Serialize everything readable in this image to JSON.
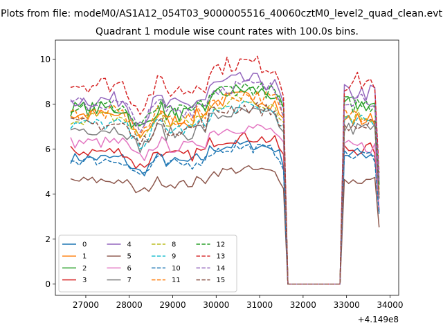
{
  "figure": {
    "suptitle": "Plots from file: modeM0/AS1A12_054T03_9000005516_40060cztM0_level2_quad_clean.evt",
    "title": "Quadrant 1 module wise count rates with 100.0s bins.",
    "x_offset_label": "+4.149e8"
  },
  "chart_data": {
    "type": "line",
    "title": "Quadrant 1 module wise count rates with 100.0s bins.",
    "xlabel": "",
    "ylabel": "",
    "x_offset": 414900000,
    "xlim": [
      26300,
      34200
    ],
    "ylim": [
      -0.5,
      10.85
    ],
    "xticks": [
      27000,
      28000,
      29000,
      30000,
      31000,
      32000,
      33000,
      34000
    ],
    "yticks": [
      0,
      2,
      4,
      6,
      8,
      10
    ],
    "legend_position": "lower-left",
    "legend_columns": 4,
    "series": [
      {
        "name": "0",
        "color": "#1f77b4",
        "dash": "solid",
        "base": 5.6,
        "gap": 5.8
      },
      {
        "name": "1",
        "color": "#ff7f0e",
        "dash": "solid",
        "base": 7.5,
        "gap": 7.3
      },
      {
        "name": "2",
        "color": "#2ca02c",
        "dash": "solid",
        "base": 7.8,
        "gap": 8.0
      },
      {
        "name": "3",
        "color": "#d62728",
        "dash": "solid",
        "base": 5.9,
        "gap": 6.0
      },
      {
        "name": "4",
        "color": "#9467bd",
        "dash": "solid",
        "base": 8.2,
        "gap": 8.5
      },
      {
        "name": "5",
        "color": "#8c564b",
        "dash": "solid",
        "base": 4.6,
        "gap": 4.6
      },
      {
        "name": "6",
        "color": "#e377c2",
        "dash": "solid",
        "base": 6.3,
        "gap": 6.1
      },
      {
        "name": "7",
        "color": "#7f7f7f",
        "dash": "solid",
        "base": 6.9,
        "gap": 6.9
      },
      {
        "name": "8",
        "color": "#bcbd22",
        "dash": "dashed",
        "base": 7.4,
        "gap": 7.5
      },
      {
        "name": "9",
        "color": "#17becf",
        "dash": "dashed",
        "base": 7.1,
        "gap": 7.2
      },
      {
        "name": "10",
        "color": "#1f77b4",
        "dash": "dashed",
        "base": 5.5,
        "gap": 5.7
      },
      {
        "name": "11",
        "color": "#ff7f0e",
        "dash": "dashed",
        "base": 7.6,
        "gap": 7.6
      },
      {
        "name": "12",
        "color": "#2ca02c",
        "dash": "dashed",
        "base": 7.9,
        "gap": 8.0
      },
      {
        "name": "13",
        "color": "#d62728",
        "dash": "dashed",
        "base": 8.9,
        "gap": 9.0
      },
      {
        "name": "14",
        "color": "#9467bd",
        "dash": "dashed",
        "base": 8.0,
        "gap": 8.3
      },
      {
        "name": "15",
        "color": "#8c564b",
        "dash": "dashed",
        "base": 7.1,
        "gap": 7.0
      }
    ]
  }
}
